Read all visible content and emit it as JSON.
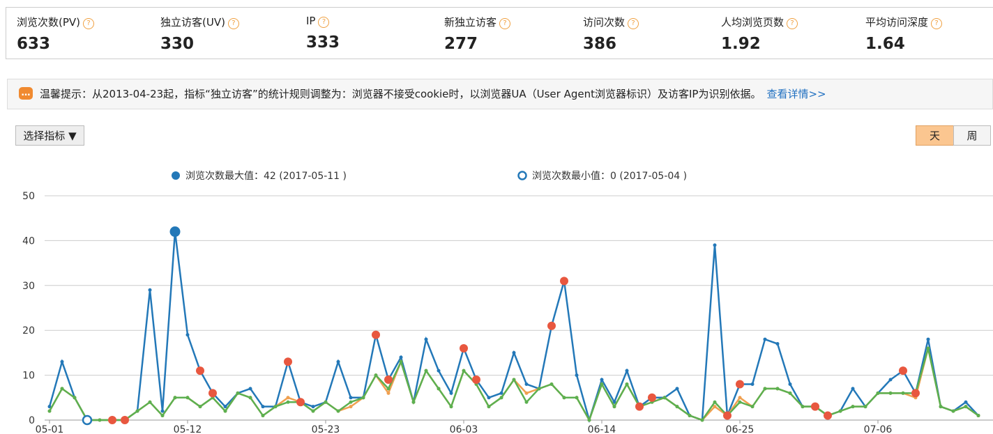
{
  "stats": [
    {
      "label": "浏览次数(PV)",
      "value": "633"
    },
    {
      "label": "独立访客(UV)",
      "value": "330"
    },
    {
      "label": "IP",
      "value": "333"
    },
    {
      "label": "新独立访客",
      "value": "277"
    },
    {
      "label": "访问次数",
      "value": "386"
    },
    {
      "label": "人均浏览页数",
      "value": "1.92"
    },
    {
      "label": "平均访问深度",
      "value": "1.64"
    }
  ],
  "notice": {
    "text": "温馨提示：从2013-04-23起，指标“独立访客”的统计规则调整为：浏览器不接受cookie时，以浏览器UA（User Agent浏览器标识）及访客IP为识别依据。",
    "link": "查看详情>>"
  },
  "controls": {
    "metric_button": "选择指标 ▼",
    "day": "天",
    "week": "周"
  },
  "chart_data": {
    "type": "line",
    "annotations": {
      "max": "浏览次数最大值：42 (2017-05-11 )",
      "min": "浏览次数最小值：0 (2017-05-04 )"
    },
    "categories": [
      "05-01",
      null,
      null,
      null,
      null,
      null,
      null,
      null,
      null,
      null,
      null,
      "05-12",
      null,
      null,
      null,
      null,
      null,
      null,
      null,
      null,
      null,
      null,
      "05-23",
      null,
      null,
      null,
      null,
      null,
      null,
      null,
      null,
      null,
      null,
      "06-03",
      null,
      null,
      null,
      null,
      null,
      null,
      null,
      null,
      null,
      null,
      "06-14",
      null,
      null,
      null,
      null,
      null,
      null,
      null,
      null,
      null,
      null,
      "06-25",
      null,
      null,
      null,
      null,
      null,
      null,
      null,
      null,
      null,
      null,
      "07-06",
      null,
      null,
      null,
      null,
      null,
      null,
      null,
      null
    ],
    "series": [
      {
        "color": "#2378b8",
        "mode": "line",
        "values": [
          3,
          13,
          5,
          0,
          0,
          0,
          0,
          2,
          29,
          2,
          42,
          19,
          11,
          6,
          3,
          6,
          7,
          3,
          3,
          13,
          4,
          3,
          4,
          13,
          5,
          5,
          19,
          9,
          14,
          4,
          18,
          11,
          6,
          16,
          9,
          5,
          6,
          15,
          8,
          7,
          21,
          31,
          10,
          0,
          9,
          4,
          11,
          3,
          5,
          5,
          7,
          1,
          0,
          39,
          1,
          8,
          8,
          18,
          17,
          8,
          3,
          3,
          1,
          2,
          7,
          3,
          6,
          9,
          11,
          6,
          18,
          3,
          2,
          4,
          1
        ]
      },
      {
        "color": "#f0a050",
        "mode": "line",
        "values": [
          2,
          7,
          5,
          0,
          0,
          0,
          0,
          2,
          4,
          1,
          5,
          5,
          3,
          5,
          2,
          6,
          5,
          1,
          3,
          5,
          4,
          2,
          4,
          2,
          3,
          5,
          10,
          6,
          13,
          4,
          11,
          7,
          3,
          11,
          8,
          3,
          5,
          9,
          6,
          7,
          8,
          5,
          5,
          0,
          8,
          3,
          8,
          3,
          4,
          5,
          3,
          1,
          0,
          3,
          1,
          5,
          3,
          7,
          7,
          6,
          3,
          3,
          1,
          2,
          3,
          3,
          6,
          6,
          6,
          5,
          16,
          3,
          2,
          3,
          1
        ]
      },
      {
        "color": "#5cb050",
        "mode": "line",
        "values": [
          2,
          7,
          5,
          0,
          0,
          0,
          0,
          2,
          4,
          1,
          5,
          5,
          3,
          5,
          2,
          6,
          5,
          1,
          3,
          4,
          4,
          2,
          4,
          2,
          4,
          5,
          10,
          7,
          13,
          4,
          11,
          7,
          3,
          11,
          8,
          3,
          5,
          9,
          4,
          7,
          8,
          5,
          5,
          0,
          8,
          3,
          8,
          3,
          4,
          5,
          3,
          1,
          0,
          4,
          1,
          4,
          3,
          7,
          7,
          6,
          3,
          3,
          1,
          2,
          3,
          3,
          6,
          6,
          6,
          6,
          16,
          3,
          2,
          3,
          1
        ]
      },
      {
        "color": "#e8573f",
        "mode": "markers",
        "values": [
          null,
          null,
          null,
          null,
          null,
          0,
          0,
          null,
          null,
          null,
          null,
          null,
          11,
          6,
          null,
          null,
          null,
          null,
          null,
          13,
          4,
          null,
          null,
          null,
          null,
          null,
          19,
          9,
          null,
          null,
          null,
          null,
          null,
          16,
          9,
          null,
          null,
          null,
          null,
          null,
          21,
          31,
          null,
          null,
          null,
          null,
          null,
          3,
          5,
          null,
          null,
          null,
          null,
          null,
          1,
          8,
          null,
          null,
          null,
          null,
          null,
          3,
          1,
          null,
          null,
          null,
          null,
          null,
          11,
          6,
          null,
          null,
          null,
          null,
          null
        ]
      }
    ],
    "ylim": [
      0,
      50
    ],
    "yticks": [
      0,
      10,
      20,
      30,
      40,
      50
    ],
    "grid": true
  }
}
